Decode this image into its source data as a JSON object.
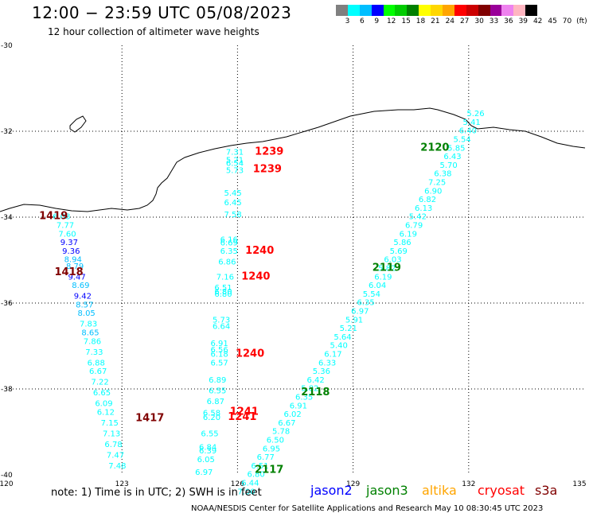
{
  "header": {
    "title": "12:00 − 23:59 UTC 05/08/2023",
    "subtitle": "12 hour collection of altimeter wave heights"
  },
  "scale": {
    "unit": "(ft)",
    "labels": [
      "3",
      "6",
      "9",
      "12",
      "15",
      "18",
      "21",
      "24",
      "27",
      "30",
      "33",
      "36",
      "39",
      "42",
      "45",
      "70"
    ],
    "colors": [
      "#808080",
      "#00ffff",
      "#00bfff",
      "#0000ff",
      "#00ff00",
      "#00cc00",
      "#008000",
      "#ffff00",
      "#ffd700",
      "#ffa500",
      "#ff0000",
      "#cc0000",
      "#800000",
      "#990099",
      "#ee82ee",
      "#ffb6c1",
      "#000000"
    ]
  },
  "axes": {
    "lat_labels": [
      "-30",
      "-32",
      "-34",
      "-36",
      "-38",
      "-40"
    ],
    "lon_labels": [
      "120",
      "123",
      "126",
      "129",
      "132",
      "135"
    ]
  },
  "note": "note:  1) Time is in UTC; 2) SWH is in feet",
  "credit": "NOAA/NESDIS Center for Satellite Applications and Research     May 10 08:30:45 UTC 2023",
  "missions": [
    {
      "name": "jason2",
      "color": "#0000ff"
    },
    {
      "name": "jason3",
      "color": "#008000"
    },
    {
      "name": "altika",
      "color": "#ffa500"
    },
    {
      "name": "cryosat",
      "color": "#ff0000"
    },
    {
      "name": "s3a",
      "color": "#800000"
    }
  ],
  "passes": [
    {
      "label": "1419",
      "color": "#800000",
      "lon": 120.85,
      "lat": -34.05
    },
    {
      "label": "1418",
      "color": "#800000",
      "lon": 121.25,
      "lat": -35.35
    },
    {
      "label": "1417",
      "color": "#800000",
      "lon": 123.35,
      "lat": -38.75
    },
    {
      "label": "1239",
      "color": "#ff0000",
      "lon": 126.45,
      "lat": -32.55
    },
    {
      "label": "1239",
      "color": "#ff0000",
      "lon": 126.4,
      "lat": -32.95
    },
    {
      "label": "1240",
      "color": "#ff0000",
      "lon": 126.2,
      "lat": -34.85
    },
    {
      "label": "1240",
      "color": "#ff0000",
      "lon": 126.1,
      "lat": -35.45
    },
    {
      "label": "1240",
      "color": "#ff0000",
      "lon": 125.95,
      "lat": -37.25
    },
    {
      "label": "1241",
      "color": "#ff0000",
      "lon": 125.8,
      "lat": -38.6
    },
    {
      "label": "1241",
      "color": "#ff0000",
      "lon": 125.75,
      "lat": -38.72
    },
    {
      "label": "2120",
      "color": "#008000",
      "lon": 130.75,
      "lat": -32.45
    },
    {
      "label": "2119",
      "color": "#008000",
      "lon": 129.5,
      "lat": -35.25
    },
    {
      "label": "2118",
      "color": "#008000",
      "lon": 127.65,
      "lat": -38.15
    },
    {
      "label": "2117",
      "color": "#008000",
      "lon": 126.45,
      "lat": -39.95
    }
  ],
  "tracks": [
    {
      "id": "s3a-west",
      "points": [
        {
          "v": "6.08",
          "c": "#00ffff",
          "lon": 121.2,
          "lat": -34.05
        },
        {
          "v": "7.77",
          "c": "#00ffff",
          "lon": 121.3,
          "lat": -34.25
        },
        {
          "v": "7.60",
          "c": "#00ffff",
          "lon": 121.35,
          "lat": -34.45
        },
        {
          "v": "9.37",
          "c": "#0000ff",
          "lon": 121.4,
          "lat": -34.65
        },
        {
          "v": "9.36",
          "c": "#0000ff",
          "lon": 121.45,
          "lat": -34.85
        },
        {
          "v": "8.94",
          "c": "#00bfff",
          "lon": 121.5,
          "lat": -35.05
        },
        {
          "v": "8.79",
          "c": "#00bfff",
          "lon": 121.55,
          "lat": -35.2
        },
        {
          "v": "9.47",
          "c": "#0000ff",
          "lon": 121.6,
          "lat": -35.45
        },
        {
          "v": "8.69",
          "c": "#00bfff",
          "lon": 121.7,
          "lat": -35.65
        },
        {
          "v": "9.42",
          "c": "#0000ff",
          "lon": 121.75,
          "lat": -35.9
        },
        {
          "v": "8.57",
          "c": "#00bfff",
          "lon": 121.8,
          "lat": -36.1
        },
        {
          "v": "8.05",
          "c": "#00bfff",
          "lon": 121.85,
          "lat": -36.3
        },
        {
          "v": "7.83",
          "c": "#00ffff",
          "lon": 121.9,
          "lat": -36.55
        },
        {
          "v": "8.65",
          "c": "#00bfff",
          "lon": 121.95,
          "lat": -36.75
        },
        {
          "v": "7.86",
          "c": "#00ffff",
          "lon": 122.0,
          "lat": -36.95
        },
        {
          "v": "7.33",
          "c": "#00ffff",
          "lon": 122.05,
          "lat": -37.2
        },
        {
          "v": "6.88",
          "c": "#00ffff",
          "lon": 122.1,
          "lat": -37.45
        },
        {
          "v": "6.67",
          "c": "#00ffff",
          "lon": 122.15,
          "lat": -37.65
        },
        {
          "v": "7.22",
          "c": "#00ffff",
          "lon": 122.2,
          "lat": -37.9
        },
        {
          "v": "6.65",
          "c": "#00ffff",
          "lon": 122.25,
          "lat": -38.15
        },
        {
          "v": "6.09",
          "c": "#00ffff",
          "lon": 122.3,
          "lat": -38.4
        },
        {
          "v": "6.12",
          "c": "#00ffff",
          "lon": 122.35,
          "lat": -38.6
        },
        {
          "v": "7.15",
          "c": "#00ffff",
          "lon": 122.45,
          "lat": -38.85
        },
        {
          "v": "7.13",
          "c": "#00ffff",
          "lon": 122.5,
          "lat": -39.1
        },
        {
          "v": "6.78",
          "c": "#00ffff",
          "lon": 122.55,
          "lat": -39.35
        },
        {
          "v": "7.47",
          "c": "#00ffff",
          "lon": 122.6,
          "lat": -39.6
        },
        {
          "v": "7.48",
          "c": "#00ffff",
          "lon": 122.65,
          "lat": -39.85
        }
      ]
    },
    {
      "id": "cryosat-track",
      "points": [
        {
          "v": "7.31",
          "c": "#00ffff",
          "lon": 125.7,
          "lat": -32.55
        },
        {
          "v": "5.21",
          "c": "#00ffff",
          "lon": 125.7,
          "lat": -32.73
        },
        {
          "v": "6.54",
          "c": "#00ffff",
          "lon": 125.7,
          "lat": -32.81
        },
        {
          "v": "5.73",
          "c": "#00ffff",
          "lon": 125.7,
          "lat": -32.97
        },
        {
          "v": "5.45",
          "c": "#00ffff",
          "lon": 125.65,
          "lat": -33.5
        },
        {
          "v": "6.45",
          "c": "#00ffff",
          "lon": 125.65,
          "lat": -33.72
        },
        {
          "v": "7.58",
          "c": "#00ffff",
          "lon": 125.65,
          "lat": -34.0
        },
        {
          "v": "6.16",
          "c": "#00ffff",
          "lon": 125.55,
          "lat": -34.58
        },
        {
          "v": "6.69",
          "c": "#00ffff",
          "lon": 125.55,
          "lat": -34.66
        },
        {
          "v": "6.35",
          "c": "#00ffff",
          "lon": 125.55,
          "lat": -34.85
        },
        {
          "v": "6.86",
          "c": "#00ffff",
          "lon": 125.5,
          "lat": -35.1
        },
        {
          "v": "7.16",
          "c": "#00ffff",
          "lon": 125.45,
          "lat": -35.45
        },
        {
          "v": "6.51",
          "c": "#00ffff",
          "lon": 125.4,
          "lat": -35.7
        },
        {
          "v": "6.80",
          "c": "#00ffff",
          "lon": 125.4,
          "lat": -35.85
        },
        {
          "v": "6.80",
          "c": "#00ffff",
          "lon": 125.4,
          "lat": -35.8
        },
        {
          "v": "5.73",
          "c": "#00ffff",
          "lon": 125.35,
          "lat": -36.45
        },
        {
          "v": "6.64",
          "c": "#00ffff",
          "lon": 125.35,
          "lat": -36.6
        },
        {
          "v": "6.91",
          "c": "#00ffff",
          "lon": 125.3,
          "lat": -37.0
        },
        {
          "v": "6.56",
          "c": "#00ffff",
          "lon": 125.3,
          "lat": -37.15
        },
        {
          "v": "6.18",
          "c": "#00ffff",
          "lon": 125.3,
          "lat": -37.25
        },
        {
          "v": "6.57",
          "c": "#00ffff",
          "lon": 125.3,
          "lat": -37.45
        },
        {
          "v": "6.89",
          "c": "#00ffff",
          "lon": 125.25,
          "lat": -37.85
        },
        {
          "v": "6.55",
          "c": "#00ffff",
          "lon": 125.25,
          "lat": -38.1
        },
        {
          "v": "6.87",
          "c": "#00ffff",
          "lon": 125.2,
          "lat": -38.35
        },
        {
          "v": "6.58",
          "c": "#00ffff",
          "lon": 125.1,
          "lat": -38.62
        },
        {
          "v": "6.20",
          "c": "#00ffff",
          "lon": 125.1,
          "lat": -38.72
        },
        {
          "v": "6.55",
          "c": "#00ffff",
          "lon": 125.05,
          "lat": -39.1
        },
        {
          "v": "6.84",
          "c": "#00ffff",
          "lon": 125.0,
          "lat": -39.42
        },
        {
          "v": "6.39",
          "c": "#00ffff",
          "lon": 125.0,
          "lat": -39.5
        },
        {
          "v": "6.05",
          "c": "#00ffff",
          "lon": 124.95,
          "lat": -39.7
        },
        {
          "v": "6.97",
          "c": "#00ffff",
          "lon": 124.9,
          "lat": -40.0
        }
      ]
    },
    {
      "id": "jason3-track",
      "points": [
        {
          "v": "5.26",
          "c": "#00ffff",
          "lon": 131.95,
          "lat": -31.65
        },
        {
          "v": "5.41",
          "c": "#00ffff",
          "lon": 131.85,
          "lat": -31.85
        },
        {
          "v": "6.40",
          "c": "#00ffff",
          "lon": 131.75,
          "lat": -32.05
        },
        {
          "v": "5.54",
          "c": "#00ffff",
          "lon": 131.6,
          "lat": -32.25
        },
        {
          "v": "5.85",
          "c": "#00ffff",
          "lon": 131.45,
          "lat": -32.45
        },
        {
          "v": "6.43",
          "c": "#00ffff",
          "lon": 131.35,
          "lat": -32.65
        },
        {
          "v": "5.70",
          "c": "#00ffff",
          "lon": 131.25,
          "lat": -32.85
        },
        {
          "v": "6.38",
          "c": "#00ffff",
          "lon": 131.1,
          "lat": -33.05
        },
        {
          "v": "7.25",
          "c": "#00ffff",
          "lon": 130.95,
          "lat": -33.25
        },
        {
          "v": "6.90",
          "c": "#00ffff",
          "lon": 130.85,
          "lat": -33.45
        },
        {
          "v": "6.82",
          "c": "#00ffff",
          "lon": 130.7,
          "lat": -33.65
        },
        {
          "v": "6.13",
          "c": "#00ffff",
          "lon": 130.6,
          "lat": -33.85
        },
        {
          "v": "5.42",
          "c": "#00ffff",
          "lon": 130.45,
          "lat": -34.05
        },
        {
          "v": "6.79",
          "c": "#00ffff",
          "lon": 130.35,
          "lat": -34.25
        },
        {
          "v": "6.19",
          "c": "#00ffff",
          "lon": 130.2,
          "lat": -34.45
        },
        {
          "v": "5.86",
          "c": "#00ffff",
          "lon": 130.05,
          "lat": -34.65
        },
        {
          "v": "5.69",
          "c": "#00ffff",
          "lon": 129.95,
          "lat": -34.85
        },
        {
          "v": "6.03",
          "c": "#00ffff",
          "lon": 129.8,
          "lat": -35.05
        },
        {
          "v": "5.82",
          "c": "#00ffff",
          "lon": 129.65,
          "lat": -35.25
        },
        {
          "v": "6.19",
          "c": "#00ffff",
          "lon": 129.55,
          "lat": -35.45
        },
        {
          "v": "6.04",
          "c": "#00ffff",
          "lon": 129.4,
          "lat": -35.65
        },
        {
          "v": "5.54",
          "c": "#00ffff",
          "lon": 129.25,
          "lat": -35.85
        },
        {
          "v": "6.35",
          "c": "#00ffff",
          "lon": 129.1,
          "lat": -36.05
        },
        {
          "v": "6.97",
          "c": "#00ffff",
          "lon": 128.95,
          "lat": -36.25
        },
        {
          "v": "5.91",
          "c": "#00ffff",
          "lon": 128.8,
          "lat": -36.45
        },
        {
          "v": "5.21",
          "c": "#00ffff",
          "lon": 128.65,
          "lat": -36.65
        },
        {
          "v": "5.64",
          "c": "#00ffff",
          "lon": 128.5,
          "lat": -36.85
        },
        {
          "v": "5.40",
          "c": "#00ffff",
          "lon": 128.4,
          "lat": -37.05
        },
        {
          "v": "6.17",
          "c": "#00ffff",
          "lon": 128.25,
          "lat": -37.25
        },
        {
          "v": "6.33",
          "c": "#00ffff",
          "lon": 128.1,
          "lat": -37.45
        },
        {
          "v": "5.36",
          "c": "#00ffff",
          "lon": 127.95,
          "lat": -37.65
        },
        {
          "v": "6.42",
          "c": "#00ffff",
          "lon": 127.8,
          "lat": -37.85
        },
        {
          "v": "5.82",
          "c": "#00ffff",
          "lon": 127.65,
          "lat": -38.05
        },
        {
          "v": "6.35",
          "c": "#00ffff",
          "lon": 127.5,
          "lat": -38.25
        },
        {
          "v": "6.91",
          "c": "#00ffff",
          "lon": 127.35,
          "lat": -38.45
        },
        {
          "v": "6.02",
          "c": "#00ffff",
          "lon": 127.2,
          "lat": -38.65
        },
        {
          "v": "6.67",
          "c": "#00ffff",
          "lon": 127.05,
          "lat": -38.85
        },
        {
          "v": "5.78",
          "c": "#00ffff",
          "lon": 126.9,
          "lat": -39.05
        },
        {
          "v": "6.50",
          "c": "#00ffff",
          "lon": 126.75,
          "lat": -39.25
        },
        {
          "v": "6.95",
          "c": "#00ffff",
          "lon": 126.65,
          "lat": -39.45
        },
        {
          "v": "6.77",
          "c": "#00ffff",
          "lon": 126.5,
          "lat": -39.65
        },
        {
          "v": "6.51",
          "c": "#00ffff",
          "lon": 126.35,
          "lat": -39.85
        },
        {
          "v": "6.80",
          "c": "#00ffff",
          "lon": 126.25,
          "lat": -40.05
        },
        {
          "v": "6.44",
          "c": "#00ffff",
          "lon": 126.1,
          "lat": -40.25
        },
        {
          "v": "7.00",
          "c": "#00ffff",
          "lon": 126.0,
          "lat": -40.45
        }
      ]
    }
  ]
}
